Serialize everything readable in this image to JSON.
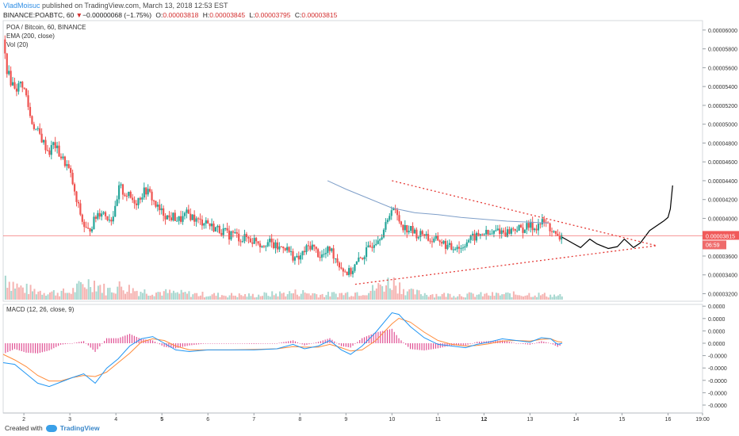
{
  "header": {
    "author": "VladMoisuc",
    "published": "published on TradingView.com, March 13, 2018 12:53 EST",
    "symbol_line": {
      "symbol": "BINANCE:POABTC, 60",
      "change_arrow": "▼",
      "change": "−0.00000068 (−1.75%)",
      "open_label": "O:",
      "open": "0.00003818",
      "high_label": "H:",
      "high": "0.00003845",
      "low_label": "L:",
      "low": "0.00003795",
      "close_label": "C:",
      "close": "0.00003815"
    }
  },
  "legends": {
    "pair": "POA / Bitcoin, 60, BINANCE",
    "ema": "EMA (200, close)",
    "vol": "Vol (20)",
    "macd": "MACD (12, 26, close, 9)"
  },
  "footer": {
    "created_with": "Created with",
    "brand": "TradingView"
  },
  "colors": {
    "up": "#26a69a",
    "down": "#ef5350",
    "ema": "#7f9fc9",
    "triangle": "#e53935",
    "projection": "#000000",
    "macd_line": "#2196f3",
    "signal_line": "#ff8c3b",
    "hist": "#e04f93",
    "price_marker": "#f05a5a",
    "timer_marker": "#ef6b6b"
  },
  "chart_data": {
    "type": "candlestick",
    "price_axis": {
      "ticks": [
        "0.00006000",
        "0.00005800",
        "0.00005600",
        "0.00005400",
        "0.00005200",
        "0.00005000",
        "0.00004800",
        "0.00004600",
        "0.00004400",
        "0.00004200",
        "0.00004000",
        "0.00003800",
        "0.00003600",
        "0.00003400",
        "0.00003200"
      ],
      "range": [
        3.12e-05,
        6.1e-05
      ],
      "last_price": "0.00003815",
      "last_price_value": 3.815e-05,
      "countdown": "06:59"
    },
    "time_axis": {
      "ticks": [
        {
          "label": "2",
          "d": 2
        },
        {
          "label": "3",
          "d": 3
        },
        {
          "label": "4",
          "d": 4
        },
        {
          "label": "5",
          "d": 5,
          "bold": true
        },
        {
          "label": "6",
          "d": 6
        },
        {
          "label": "7",
          "d": 7
        },
        {
          "label": "8",
          "d": 8
        },
        {
          "label": "9",
          "d": 9
        },
        {
          "label": "10",
          "d": 10
        },
        {
          "label": "11",
          "d": 11
        },
        {
          "label": "12",
          "d": 12,
          "bold": true
        },
        {
          "label": "13",
          "d": 13
        },
        {
          "label": "14",
          "d": 14
        },
        {
          "label": "15",
          "d": 15
        },
        {
          "label": "16",
          "d": 16
        },
        {
          "label": "19:00",
          "d": 16.75
        }
      ],
      "range": [
        1.55,
        16.75
      ]
    },
    "macd_axis": {
      "ticks": [
        "0.0000",
        "0.0000",
        "0.0000",
        "0.0000",
        "-0.0000",
        "-0.0000",
        "-0.0000",
        "-0.0000",
        "-0.0000"
      ],
      "zero_index": 3
    },
    "price_path": [
      [
        1.55,
        5.9e-05
      ],
      [
        1.62,
        5.6e-05
      ],
      [
        1.72,
        5.45e-05
      ],
      [
        1.85,
        5.38e-05
      ],
      [
        1.95,
        5.45e-05
      ],
      [
        2.05,
        5.3e-05
      ],
      [
        2.15,
        5.05e-05
      ],
      [
        2.25,
        4.95e-05
      ],
      [
        2.35,
        4.88e-05
      ],
      [
        2.45,
        4.78e-05
      ],
      [
        2.55,
        4.7e-05
      ],
      [
        2.65,
        4.8e-05
      ],
      [
        2.75,
        4.7e-05
      ],
      [
        2.85,
        4.62e-05
      ],
      [
        2.95,
        4.55e-05
      ],
      [
        3.05,
        4.4e-05
      ],
      [
        3.12,
        4.2e-05
      ],
      [
        3.2,
        4.1e-05
      ],
      [
        3.28,
        3.95e-05
      ],
      [
        3.38,
        3.85e-05
      ],
      [
        3.5,
        3.95e-05
      ],
      [
        3.6,
        4.05e-05
      ],
      [
        3.7,
        4.08e-05
      ],
      [
        3.8,
        4.02e-05
      ],
      [
        3.9,
        4e-05
      ],
      [
        4.0,
        4.1e-05
      ],
      [
        4.08,
        4.35e-05
      ],
      [
        4.15,
        4.28e-05
      ],
      [
        4.25,
        4.25e-05
      ],
      [
        4.35,
        4.2e-05
      ],
      [
        4.45,
        4.18e-05
      ],
      [
        4.55,
        4.25e-05
      ],
      [
        4.65,
        4.3e-05
      ],
      [
        4.75,
        4.25e-05
      ],
      [
        4.85,
        4.15e-05
      ],
      [
        4.95,
        4.08e-05
      ],
      [
        5.05,
        4.05e-05
      ],
      [
        5.15,
        4e-05
      ],
      [
        5.25,
        4.02e-05
      ],
      [
        5.35,
        3.98e-05
      ],
      [
        5.45,
        4e-05
      ],
      [
        5.55,
        4.05e-05
      ],
      [
        5.65,
        4.02e-05
      ],
      [
        5.75,
        3.98e-05
      ],
      [
        5.85,
        3.96e-05
      ],
      [
        5.95,
        3.98e-05
      ],
      [
        6.05,
        3.92e-05
      ],
      [
        6.15,
        3.9e-05
      ],
      [
        6.25,
        3.88e-05
      ],
      [
        6.35,
        3.86e-05
      ],
      [
        6.45,
        3.82e-05
      ],
      [
        6.55,
        3.85e-05
      ],
      [
        6.65,
        3.8e-05
      ],
      [
        6.75,
        3.78e-05
      ],
      [
        6.85,
        3.8e-05
      ],
      [
        6.95,
        3.76e-05
      ],
      [
        7.05,
        3.78e-05
      ],
      [
        7.15,
        3.72e-05
      ],
      [
        7.25,
        3.75e-05
      ],
      [
        7.35,
        3.74e-05
      ],
      [
        7.45,
        3.7e-05
      ],
      [
        7.55,
        3.68e-05
      ],
      [
        7.65,
        3.72e-05
      ],
      [
        7.75,
        3.65e-05
      ],
      [
        7.85,
        3.6e-05
      ],
      [
        7.95,
        3.55e-05
      ],
      [
        8.05,
        3.62e-05
      ],
      [
        8.15,
        3.68e-05
      ],
      [
        8.25,
        3.72e-05
      ],
      [
        8.35,
        3.65e-05
      ],
      [
        8.45,
        3.6e-05
      ],
      [
        8.55,
        3.62e-05
      ],
      [
        8.65,
        3.68e-05
      ],
      [
        8.75,
        3.6e-05
      ],
      [
        8.85,
        3.52e-05
      ],
      [
        8.95,
        3.45e-05
      ],
      [
        9.05,
        3.42e-05
      ],
      [
        9.12,
        3.44e-05
      ],
      [
        9.2,
        3.5e-05
      ],
      [
        9.3,
        3.56e-05
      ],
      [
        9.4,
        3.62e-05
      ],
      [
        9.5,
        3.68e-05
      ],
      [
        9.6,
        3.75e-05
      ],
      [
        9.7,
        3.8e-05
      ],
      [
        9.8,
        3.86e-05
      ],
      [
        9.9,
        3.95e-05
      ],
      [
        10.0,
        4.15e-05
      ],
      [
        10.08,
        4.05e-05
      ],
      [
        10.18,
        3.96e-05
      ],
      [
        10.28,
        3.9e-05
      ],
      [
        10.4,
        3.88e-05
      ],
      [
        10.5,
        3.84e-05
      ],
      [
        10.6,
        3.82e-05
      ],
      [
        10.7,
        3.85e-05
      ],
      [
        10.8,
        3.78e-05
      ],
      [
        10.9,
        3.75e-05
      ],
      [
        11.0,
        3.78e-05
      ],
      [
        11.1,
        3.74e-05
      ],
      [
        11.2,
        3.7e-05
      ],
      [
        11.3,
        3.68e-05
      ],
      [
        11.4,
        3.72e-05
      ],
      [
        11.5,
        3.68e-05
      ],
      [
        11.6,
        3.75e-05
      ],
      [
        11.7,
        3.78e-05
      ],
      [
        11.8,
        3.8e-05
      ],
      [
        11.9,
        3.82e-05
      ],
      [
        12.0,
        3.85e-05
      ],
      [
        12.1,
        3.82e-05
      ],
      [
        12.2,
        3.84e-05
      ],
      [
        12.3,
        3.88e-05
      ],
      [
        12.4,
        3.86e-05
      ],
      [
        12.5,
        3.85e-05
      ],
      [
        12.6,
        3.88e-05
      ],
      [
        12.7,
        3.9e-05
      ],
      [
        12.8,
        3.88e-05
      ],
      [
        12.9,
        3.9e-05
      ],
      [
        13.0,
        3.92e-05
      ],
      [
        13.1,
        3.9e-05
      ],
      [
        13.2,
        3.94e-05
      ],
      [
        13.3,
        3.96e-05
      ],
      [
        13.4,
        3.92e-05
      ],
      [
        13.5,
        3.85e-05
      ],
      [
        13.6,
        3.78e-05
      ],
      [
        13.7,
        3.815e-05
      ]
    ],
    "volume_path": [
      [
        1.55,
        0.45
      ],
      [
        1.7,
        0.3
      ],
      [
        1.9,
        0.2
      ],
      [
        2.2,
        0.15
      ],
      [
        2.6,
        0.12
      ],
      [
        3.0,
        0.12
      ],
      [
        3.3,
        0.25
      ],
      [
        3.5,
        0.3
      ],
      [
        3.8,
        0.15
      ],
      [
        4.1,
        0.22
      ],
      [
        4.5,
        0.14
      ],
      [
        5.0,
        0.12
      ],
      [
        6.0,
        0.08
      ],
      [
        7.0,
        0.07
      ],
      [
        8.0,
        0.12
      ],
      [
        8.5,
        0.08
      ],
      [
        9.0,
        0.1
      ],
      [
        9.5,
        0.14
      ],
      [
        10.0,
        0.3
      ],
      [
        10.4,
        0.12
      ],
      [
        11.0,
        0.08
      ],
      [
        12.0,
        0.08
      ],
      [
        13.0,
        0.09
      ],
      [
        13.7,
        0.06
      ]
    ],
    "ema_200": [
      [
        8.6,
        4.4e-05
      ],
      [
        9.0,
        4.31e-05
      ],
      [
        9.5,
        4.21e-05
      ],
      [
        10.0,
        4.11e-05
      ],
      [
        10.5,
        4.06e-05
      ],
      [
        11.0,
        4.04e-05
      ],
      [
        11.5,
        4.01e-05
      ],
      [
        12.0,
        3.99e-05
      ],
      [
        12.5,
        3.97e-05
      ],
      [
        13.0,
        3.96e-05
      ],
      [
        13.4,
        3.95e-05
      ]
    ],
    "triangle": {
      "upper": [
        [
          10.0,
          4.4e-05
        ],
        [
          15.75,
          3.71e-05
        ]
      ],
      "lower": [
        [
          9.2,
          3.3e-05
        ],
        [
          15.75,
          3.71e-05
        ]
      ]
    },
    "projection": [
      [
        13.7,
        3.8e-05
      ],
      [
        13.95,
        3.73e-05
      ],
      [
        14.1,
        3.69e-05
      ],
      [
        14.3,
        3.78e-05
      ],
      [
        14.45,
        3.73e-05
      ],
      [
        14.7,
        3.68e-05
      ],
      [
        14.9,
        3.7e-05
      ],
      [
        15.05,
        3.78e-05
      ],
      [
        15.25,
        3.69e-05
      ],
      [
        15.4,
        3.74e-05
      ],
      [
        15.6,
        3.87e-05
      ],
      [
        15.9,
        3.97e-05
      ],
      [
        16.0,
        4.01e-05
      ],
      [
        16.05,
        4.1e-05
      ],
      [
        16.1,
        4.35e-05
      ]
    ],
    "macd_line": [
      [
        1.55,
        -0.35
      ],
      [
        1.8,
        -0.38
      ],
      [
        2.05,
        -0.55
      ],
      [
        2.3,
        -0.72
      ],
      [
        2.55,
        -0.78
      ],
      [
        2.8,
        -0.7
      ],
      [
        3.05,
        -0.62
      ],
      [
        3.3,
        -0.55
      ],
      [
        3.55,
        -0.72
      ],
      [
        3.8,
        -0.45
      ],
      [
        4.05,
        -0.28
      ],
      [
        4.3,
        -0.05
      ],
      [
        4.55,
        0.08
      ],
      [
        4.8,
        0.12
      ],
      [
        5.05,
        0.0
      ],
      [
        5.3,
        -0.12
      ],
      [
        5.6,
        -0.15
      ],
      [
        6.0,
        -0.12
      ],
      [
        6.5,
        -0.12
      ],
      [
        7.0,
        -0.12
      ],
      [
        7.5,
        -0.1
      ],
      [
        7.85,
        -0.02
      ],
      [
        8.1,
        -0.1
      ],
      [
        8.4,
        -0.05
      ],
      [
        8.65,
        0.05
      ],
      [
        8.9,
        -0.12
      ],
      [
        9.1,
        -0.2
      ],
      [
        9.35,
        -0.05
      ],
      [
        9.65,
        0.2
      ],
      [
        10.0,
        0.55
      ],
      [
        10.15,
        0.52
      ],
      [
        10.4,
        0.3
      ],
      [
        10.7,
        0.1
      ],
      [
        11.0,
        -0.02
      ],
      [
        11.3,
        -0.05
      ],
      [
        11.6,
        -0.08
      ],
      [
        11.85,
        -0.02
      ],
      [
        12.1,
        0.02
      ],
      [
        12.4,
        0.08
      ],
      [
        12.7,
        0.05
      ],
      [
        13.0,
        0.02
      ],
      [
        13.25,
        0.1
      ],
      [
        13.45,
        0.08
      ],
      [
        13.6,
        -0.02
      ],
      [
        13.7,
        0.0
      ]
    ],
    "signal_line": [
      [
        1.55,
        -0.2
      ],
      [
        1.8,
        -0.3
      ],
      [
        2.05,
        -0.42
      ],
      [
        2.3,
        -0.58
      ],
      [
        2.55,
        -0.68
      ],
      [
        2.8,
        -0.68
      ],
      [
        3.05,
        -0.62
      ],
      [
        3.3,
        -0.58
      ],
      [
        3.55,
        -0.6
      ],
      [
        3.8,
        -0.52
      ],
      [
        4.05,
        -0.35
      ],
      [
        4.3,
        -0.18
      ],
      [
        4.55,
        0.02
      ],
      [
        4.8,
        0.08
      ],
      [
        5.05,
        0.05
      ],
      [
        5.3,
        -0.05
      ],
      [
        5.6,
        -0.12
      ],
      [
        6.0,
        -0.12
      ],
      [
        6.5,
        -0.12
      ],
      [
        7.0,
        -0.11
      ],
      [
        7.5,
        -0.1
      ],
      [
        7.85,
        -0.06
      ],
      [
        8.1,
        -0.07
      ],
      [
        8.4,
        -0.07
      ],
      [
        8.65,
        -0.02
      ],
      [
        8.9,
        -0.08
      ],
      [
        9.1,
        -0.14
      ],
      [
        9.35,
        -0.12
      ],
      [
        9.65,
        0.05
      ],
      [
        10.0,
        0.35
      ],
      [
        10.15,
        0.45
      ],
      [
        10.4,
        0.38
      ],
      [
        10.7,
        0.2
      ],
      [
        11.0,
        0.05
      ],
      [
        11.3,
        -0.02
      ],
      [
        11.6,
        -0.05
      ],
      [
        11.85,
        -0.04
      ],
      [
        12.1,
        -0.01
      ],
      [
        12.4,
        0.04
      ],
      [
        12.7,
        0.05
      ],
      [
        13.0,
        0.04
      ],
      [
        13.25,
        0.07
      ],
      [
        13.45,
        0.08
      ],
      [
        13.6,
        0.03
      ],
      [
        13.7,
        0.02
      ]
    ]
  }
}
